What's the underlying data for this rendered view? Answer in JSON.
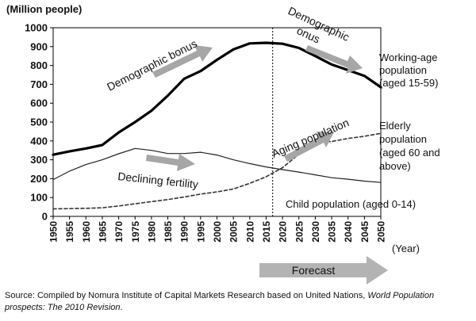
{
  "chart_data": {
    "type": "line",
    "y_unit": "(Million people)",
    "x_unit": "(Year)",
    "ylim": [
      0,
      1000
    ],
    "yticks": [
      0,
      100,
      200,
      300,
      400,
      500,
      600,
      700,
      800,
      900,
      1000
    ],
    "x": [
      1950,
      1955,
      1960,
      1965,
      1970,
      1975,
      1980,
      1985,
      1990,
      1995,
      2000,
      2005,
      2010,
      2015,
      2020,
      2025,
      2030,
      2035,
      2040,
      2045,
      2050
    ],
    "grid": false,
    "reference_line": {
      "x": 2017,
      "style": "dashed"
    },
    "series": [
      {
        "name": "Working-age population (aged 15-59)",
        "values": [
          327,
          345,
          360,
          378,
          445,
          500,
          560,
          640,
          730,
          770,
          830,
          885,
          917,
          920,
          915,
          893,
          850,
          805,
          775,
          745,
          685
        ],
        "color": "#000000",
        "style": "thick"
      },
      {
        "name": "Elderly population (aged 60 and above)",
        "values": [
          40,
          41,
          43,
          46,
          55,
          67,
          78,
          89,
          103,
          118,
          130,
          145,
          175,
          210,
          258,
          330,
          395,
          397,
          413,
          425,
          440
        ],
        "color": "#333333",
        "style": "dashed"
      },
      {
        "name": "Child population (aged 0-14)",
        "values": [
          195,
          240,
          275,
          300,
          332,
          360,
          350,
          333,
          333,
          340,
          325,
          300,
          280,
          262,
          248,
          235,
          220,
          205,
          197,
          187,
          180
        ],
        "color": "#222222",
        "style": "thin"
      }
    ],
    "annotations": {
      "demographic_bonus": "Demographic bonus",
      "demographic_onus_1": "Demographic",
      "demographic_onus_2": "onus",
      "declining_fertility": "Declining fertility",
      "aging_population": "Aging population",
      "forecast": "Forecast"
    },
    "labels": {
      "working_1": "Working-age",
      "working_2": "population",
      "working_3": "(aged 15-59)",
      "elderly_1": "Elderly",
      "elderly_2": "population",
      "elderly_3": "(aged 60 and",
      "elderly_4": "above)",
      "child": "Child population (aged 0-14)"
    }
  },
  "source": {
    "prefix": "Source: Compiled by Nomura Institute of Capital Markets Research based on United Nations, ",
    "italic": "World Population prospects: The 2010 Revision",
    "suffix": "."
  },
  "colors": {
    "arrow": "#a6a6a6",
    "forecast_arrow": "#b3b3b3"
  }
}
